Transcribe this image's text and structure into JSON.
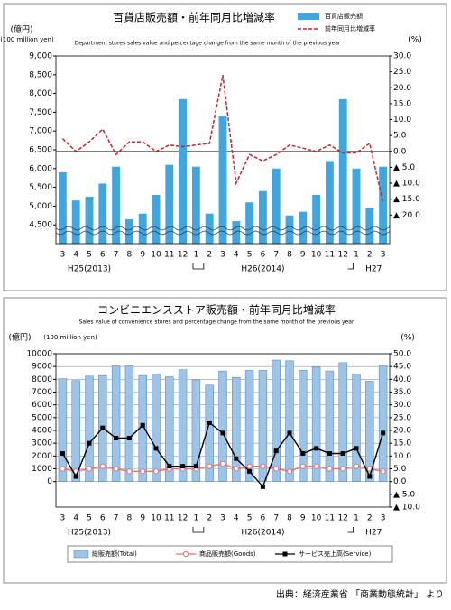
{
  "chart_data": [
    {
      "type": "combo",
      "title": "百貨店販売額・前年同月比増減率",
      "subtitle": "Department stores sales value and percentage change from the same month of the previous year",
      "y_label": "(億円)",
      "y_label_en": "(100 million yen)",
      "y2_label": "(%)",
      "categories": [
        "3",
        "4",
        "5",
        "6",
        "7",
        "8",
        "9",
        "10",
        "11",
        "12",
        "1",
        "2",
        "3",
        "4",
        "5",
        "6",
        "7",
        "8",
        "9",
        "10",
        "11",
        "12",
        "1",
        "2",
        "3"
      ],
      "year_labels": [
        "H25(2013)",
        "H26(2014)",
        "H27"
      ],
      "series": [
        {
          "name": "百貨店販売額",
          "kind": "bar",
          "color": "#3fa6e0",
          "values": [
            5900,
            5150,
            5250,
            5600,
            6050,
            4650,
            4800,
            5300,
            6100,
            7850,
            6050,
            4800,
            7400,
            4600,
            5100,
            5400,
            6000,
            4750,
            4850,
            5300,
            6200,
            7850,
            6000,
            4950,
            6050
          ]
        },
        {
          "name": "前年同月比増減率",
          "kind": "line",
          "axis": "y2",
          "color": "#c0272d",
          "dashed": true,
          "values": [
            4,
            0,
            3,
            7,
            -1,
            3,
            3,
            0,
            2,
            1.5,
            2,
            2.5,
            24,
            -10,
            -1,
            -3,
            -1,
            2,
            1,
            0,
            2,
            -0.5,
            -0.5,
            2.5,
            -16
          ]
        }
      ],
      "ylim": [
        4000,
        9000
      ],
      "yticks": [
        {
          "value": 4500,
          "label": "4,500"
        },
        {
          "value": 5000,
          "label": "5,000"
        },
        {
          "value": 5500,
          "label": "5,500"
        },
        {
          "value": 6000,
          "label": "6,000"
        },
        {
          "value": 6500,
          "label": "6,500"
        },
        {
          "value": 7000,
          "label": "7,000"
        },
        {
          "value": 7500,
          "label": "7,500"
        },
        {
          "value": 8000,
          "label": "8,000"
        },
        {
          "value": 8500,
          "label": "8,500"
        },
        {
          "value": 9000,
          "label": "9,000"
        }
      ],
      "y2lim": [
        -29,
        30
      ],
      "y2ticks": [
        {
          "value": 30,
          "label": "30.0"
        },
        {
          "value": 25,
          "label": "25.0"
        },
        {
          "value": 20,
          "label": "20.0"
        },
        {
          "value": 15,
          "label": "15.0"
        },
        {
          "value": 10,
          "label": "10.0"
        },
        {
          "value": 5,
          "label": "5.0"
        },
        {
          "value": 0,
          "label": "0.0"
        },
        {
          "value": -5,
          "label": "▲ 5.0"
        },
        {
          "value": -10,
          "label": "▲ 10.0"
        },
        {
          "value": -15,
          "label": "▲ 15.0"
        },
        {
          "value": -20,
          "label": "▲ 20.0"
        }
      ],
      "grid": false,
      "y2_zero_line": true,
      "axis_break": true,
      "legend": "top-right"
    },
    {
      "type": "combo",
      "title": "コンビニエンスストア販売額・前年同月比増減率",
      "subtitle": "Sales value of convenience stores and percentage change from the same month of the previous year",
      "y_label": "(億円)",
      "y_label_en": "(100 million yen)",
      "y2_label": "(%)",
      "categories": [
        "3",
        "4",
        "5",
        "6",
        "7",
        "8",
        "9",
        "10",
        "11",
        "12",
        "1",
        "2",
        "3",
        "4",
        "5",
        "6",
        "7",
        "8",
        "9",
        "10",
        "11",
        "12",
        "1",
        "2",
        "3"
      ],
      "year_labels": [
        "H25(2013)",
        "H26(2014)",
        "H27"
      ],
      "series": [
        {
          "name": "総販売額(Total)",
          "kind": "bar",
          "color": "#9dc3e6",
          "values": [
            8050,
            7900,
            8250,
            8300,
            9050,
            9050,
            8300,
            8400,
            8200,
            8750,
            7950,
            7550,
            8650,
            8150,
            8700,
            8700,
            9500,
            9450,
            8700,
            8950,
            8650,
            9300,
            8400,
            7850,
            9050
          ]
        },
        {
          "name": "商品販売額(Goods)",
          "kind": "line",
          "axis": "y2",
          "color": "#e8706e",
          "marker": "circle",
          "values": [
            5,
            4,
            5,
            6,
            5,
            4,
            4,
            4,
            5,
            5,
            5,
            6,
            7,
            5,
            6,
            6,
            5,
            4,
            6,
            6,
            5,
            5,
            6,
            5,
            4
          ]
        },
        {
          "name": "サービス売上高(Service)",
          "kind": "line",
          "axis": "y2",
          "color": "#000000",
          "marker": "square",
          "values": [
            11,
            2,
            15,
            21,
            17,
            17,
            22,
            13,
            6,
            6,
            6,
            23,
            19,
            9,
            4,
            -2,
            12,
            19,
            11,
            13,
            11,
            11,
            13,
            2,
            19
          ]
        }
      ],
      "ylim": [
        -2000,
        10000
      ],
      "yticks": [
        0,
        1000,
        2000,
        3000,
        4000,
        5000,
        6000,
        7000,
        8000,
        9000,
        10000
      ],
      "y2lim": [
        -10,
        50
      ],
      "y2ticks": [
        {
          "value": 50,
          "label": "50.0"
        },
        {
          "value": 45,
          "label": "45.0"
        },
        {
          "value": 40,
          "label": "40.0"
        },
        {
          "value": 35,
          "label": "35.0"
        },
        {
          "value": 30,
          "label": "30.0"
        },
        {
          "value": 25,
          "label": "25.0"
        },
        {
          "value": 20,
          "label": "20.0"
        },
        {
          "value": 15,
          "label": "15.0"
        },
        {
          "value": 10,
          "label": "10.0"
        },
        {
          "value": 5,
          "label": "5.0"
        },
        {
          "value": 0,
          "label": "0.0"
        },
        {
          "value": -5,
          "label": "▲ 5.0"
        },
        {
          "value": -10,
          "label": "▲ 10.0"
        }
      ],
      "grid": true,
      "y2_zero_line": false,
      "axis_break": false,
      "legend": "bottom"
    }
  ],
  "source": "出典：経済産業省 「商業動態統計」 より"
}
